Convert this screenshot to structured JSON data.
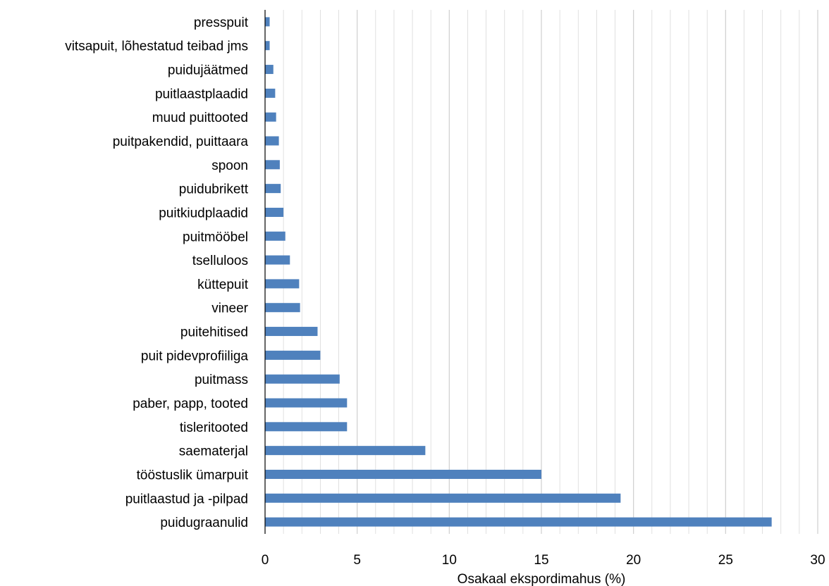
{
  "chart_data": {
    "type": "bar",
    "orientation": "horizontal",
    "categories": [
      "presspuit",
      "vitsapuit, lõhestatud teibad jms",
      "puidujäätmed",
      "puitlaastplaadid",
      "muud puittooted",
      "puitpakendid, puittaara",
      "spoon",
      "puidubrikett",
      "puitkiudplaadid",
      "puitmööbel",
      "tselluloos",
      "küttepuit",
      "vineer",
      "puitehitised",
      "puit pidevprofiiliga",
      "puitmass",
      "paber, papp, tooted",
      "tisleritooted",
      "saematerjal",
      "tööstuslik ümarpuit",
      "puitlaastud ja -pilpad",
      "puidugraanulid"
    ],
    "values": [
      0.25,
      0.25,
      0.45,
      0.55,
      0.6,
      0.75,
      0.8,
      0.85,
      1.0,
      1.1,
      1.35,
      1.85,
      1.9,
      2.85,
      3.0,
      4.05,
      4.45,
      4.45,
      8.7,
      15.0,
      19.3,
      27.5
    ],
    "xlabel": "Osakaal ekspordimahus (%)",
    "ylabel": "",
    "xlim": [
      0,
      30
    ],
    "xticks": [
      "0",
      "5",
      "10",
      "15",
      "20",
      "25",
      "30"
    ],
    "grid": "vertical",
    "bar_color": "#4f81bd",
    "grid_color": "#d9d9d9",
    "axis_color": "#000000"
  }
}
